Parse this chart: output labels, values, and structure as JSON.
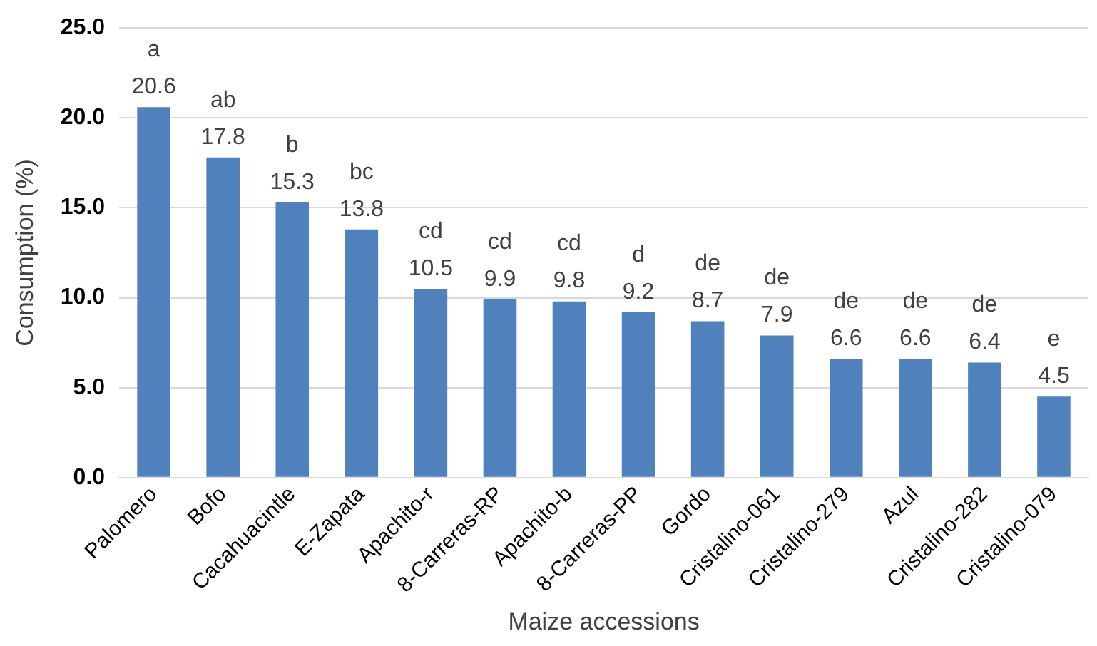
{
  "chart_data": {
    "type": "bar",
    "xlabel": "Maize accessions",
    "ylabel": "Consumption (%)",
    "categories": [
      "Palomero",
      "Bofo",
      "Cacahuacintle",
      "E-Zapata",
      "Apachito-r",
      "8-Carreras-RP",
      "Apachito-b",
      "8-Carreras-PP",
      "Gordo",
      "Cristalino-061",
      "Cristalino-279",
      "Azul",
      "Cristalino-282",
      "Cristalino-079"
    ],
    "values": [
      20.6,
      17.8,
      15.3,
      13.8,
      10.5,
      9.9,
      9.8,
      9.2,
      8.7,
      7.9,
      6.6,
      6.6,
      6.4,
      4.5
    ],
    "value_labels": [
      "20.6",
      "17.8",
      "15.3",
      "13.8",
      "10.5",
      "9.9",
      "9.8",
      "9.2",
      "8.7",
      "7.9",
      "6.6",
      "6.6",
      "6.4",
      "4.5"
    ],
    "color": "#4f81bd",
    "ylim": [
      0,
      25
    ],
    "yticks": [
      {
        "value": 0,
        "label": "0.0"
      },
      {
        "value": 5,
        "label": "5.0"
      },
      {
        "value": 10,
        "label": "10.0"
      },
      {
        "value": 15,
        "label": "15.0"
      },
      {
        "value": 20,
        "label": "20.0"
      },
      {
        "value": 25,
        "label": "25.0"
      }
    ],
    "grid": "y",
    "annotations": [
      {
        "text": "a",
        "x": "Palomero",
        "y": 20.6
      },
      {
        "text": "ab",
        "x": "Bofo",
        "y": 17.8
      },
      {
        "text": "b",
        "x": "Cacahuacintle",
        "y": 15.3
      },
      {
        "text": "bc",
        "x": "E-Zapata",
        "y": 13.8
      },
      {
        "text": "cd",
        "x": "Apachito-r",
        "y": 10.5
      },
      {
        "text": "cd",
        "x": "8-Carreras-RP",
        "y": 9.9
      },
      {
        "text": "cd",
        "x": "Apachito-b",
        "y": 9.8
      },
      {
        "text": "d",
        "x": "8-Carreras-PP",
        "y": 9.2
      },
      {
        "text": "de",
        "x": "Gordo",
        "y": 8.7
      },
      {
        "text": "de",
        "x": "Cristalino-061",
        "y": 7.9
      },
      {
        "text": "de",
        "x": "Cristalino-279",
        "y": 6.6
      },
      {
        "text": "de",
        "x": "Azul",
        "y": 6.6
      },
      {
        "text": "de",
        "x": "Cristalino-282",
        "y": 6.4
      },
      {
        "text": "e",
        "x": "Cristalino-079",
        "y": 4.5
      }
    ]
  }
}
